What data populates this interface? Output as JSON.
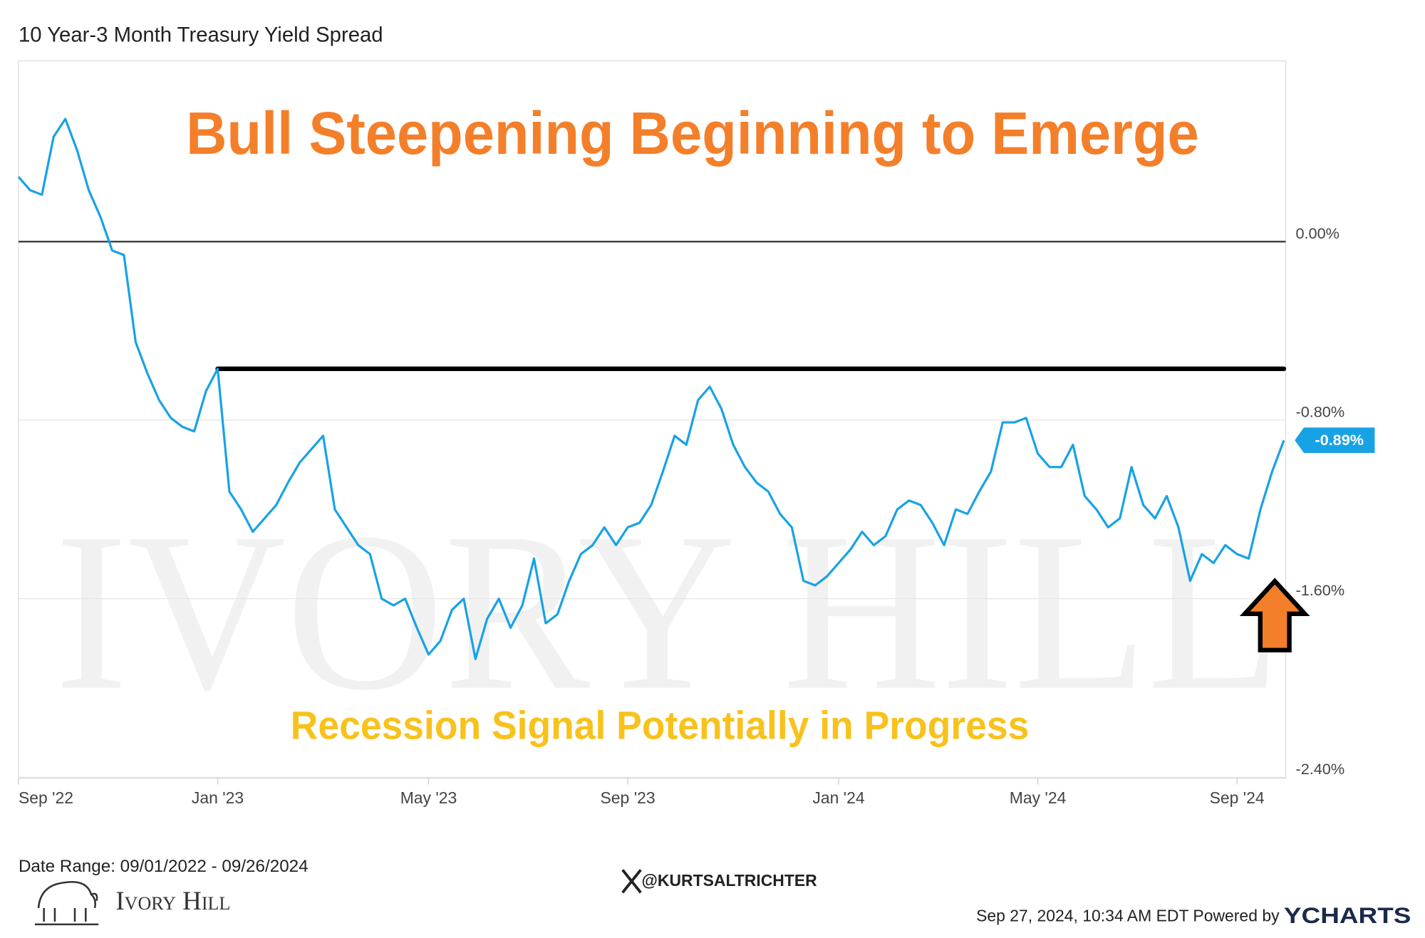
{
  "chart_data": {
    "type": "line",
    "title": "10 Year-3 Month Treasury Yield Spread",
    "headline": "Bull Steepening Beginning to Emerge",
    "subheadline": "Recession Signal Potentially in Progress",
    "watermark": "IVORY HILL",
    "categories": [
      "Sep '22",
      null,
      null,
      null,
      null,
      null,
      null,
      null,
      null,
      null,
      null,
      null,
      null,
      null,
      null,
      null,
      null,
      "Jan '23",
      null,
      null,
      null,
      null,
      null,
      null,
      null,
      null,
      null,
      null,
      null,
      null,
      null,
      null,
      null,
      null,
      null,
      "May '23",
      null,
      null,
      null,
      null,
      null,
      null,
      null,
      null,
      null,
      null,
      null,
      null,
      null,
      null,
      null,
      null,
      "Sep '23",
      null,
      null,
      null,
      null,
      null,
      null,
      null,
      null,
      null,
      null,
      null,
      null,
      null,
      null,
      null,
      null,
      null,
      "Jan '24",
      null,
      null,
      null,
      null,
      null,
      null,
      null,
      null,
      null,
      null,
      null,
      null,
      null,
      null,
      null,
      null,
      "May '24",
      null,
      null,
      null,
      null,
      null,
      null,
      null,
      null,
      null,
      null,
      null,
      null,
      null,
      null,
      null,
      null,
      "Sep '24",
      null,
      null,
      null,
      null
    ],
    "series": [
      {
        "name": "10 Year-3 Month Treasury Yield Spread",
        "color": "#17a2e6",
        "values": [
          0.29,
          0.23,
          0.21,
          0.47,
          0.55,
          0.41,
          0.23,
          0.11,
          -0.04,
          -0.06,
          -0.45,
          -0.59,
          -0.71,
          -0.79,
          -0.83,
          -0.85,
          -0.67,
          -0.57,
          -1.12,
          -1.2,
          -1.3,
          -1.24,
          -1.18,
          -1.08,
          -0.99,
          -0.93,
          -0.87,
          -1.2,
          -1.28,
          -1.36,
          -1.4,
          -1.6,
          -1.63,
          -1.6,
          -1.73,
          -1.85,
          -1.79,
          -1.65,
          -1.6,
          -1.87,
          -1.69,
          -1.6,
          -1.73,
          -1.63,
          -1.42,
          -1.71,
          -1.67,
          -1.52,
          -1.4,
          -1.36,
          -1.28,
          -1.36,
          -1.28,
          -1.26,
          -1.18,
          -1.03,
          -0.87,
          -0.91,
          -0.71,
          -0.65,
          -0.75,
          -0.91,
          -1.01,
          -1.08,
          -1.12,
          -1.22,
          -1.28,
          -1.52,
          -1.54,
          -1.5,
          -1.44,
          -1.38,
          -1.3,
          -1.36,
          -1.32,
          -1.2,
          -1.16,
          -1.18,
          -1.26,
          -1.36,
          -1.2,
          -1.22,
          -1.12,
          -1.03,
          -0.81,
          -0.81,
          -0.79,
          -0.95,
          -1.01,
          -1.01,
          -0.91,
          -1.14,
          -1.2,
          -1.28,
          -1.24,
          -1.01,
          -1.18,
          -1.24,
          -1.14,
          -1.28,
          -1.52,
          -1.4,
          -1.44,
          -1.36,
          -1.4,
          -1.42,
          -1.2,
          -1.03,
          -0.89
        ],
        "value_labels": [
          null,
          null,
          null,
          null,
          null,
          null,
          null,
          null,
          null,
          null,
          null,
          null,
          null,
          null,
          null,
          null,
          null,
          null,
          null,
          null,
          null,
          null,
          null,
          null,
          null,
          null,
          null,
          null,
          null,
          null,
          null,
          null,
          null,
          null,
          null,
          null,
          null,
          null,
          null,
          null,
          null,
          null,
          null,
          null,
          null,
          null,
          null,
          null,
          null,
          null,
          null,
          null,
          null,
          null,
          null,
          null,
          null,
          null,
          null,
          null,
          null,
          null,
          null,
          null,
          null,
          null,
          null,
          null,
          null,
          null,
          null,
          null,
          null,
          null,
          null,
          null,
          null,
          null,
          null,
          null,
          null,
          null,
          null,
          null,
          null,
          null,
          null,
          null,
          null,
          null,
          null,
          null,
          null,
          null,
          null,
          null,
          null,
          null,
          null,
          null,
          null,
          null,
          null,
          null,
          null,
          null,
          null,
          null,
          "-0.89%"
        ]
      }
    ],
    "ylim": [
      -2.4,
      0.81
    ],
    "yticks": [
      {
        "value": 0,
        "label": "0.00%"
      },
      {
        "value": -0.8,
        "label": "-0.80%"
      },
      {
        "value": -1.6,
        "label": "-1.60%"
      },
      {
        "value": -2.4,
        "label": "-2.40%"
      }
    ],
    "grid": true,
    "reference_line": {
      "value": -0.57,
      "from_category_index": 17,
      "color": "#000000"
    },
    "footer": {
      "date_range": "Date Range: 09/01/2022 - 09/26/2024",
      "handle": "@KURTSALTRICHTER",
      "brand": "Ivory Hill",
      "timestamp": "Sep 27, 2024, 10:34 AM EDT Powered by",
      "provider": "YCHARTS"
    }
  }
}
